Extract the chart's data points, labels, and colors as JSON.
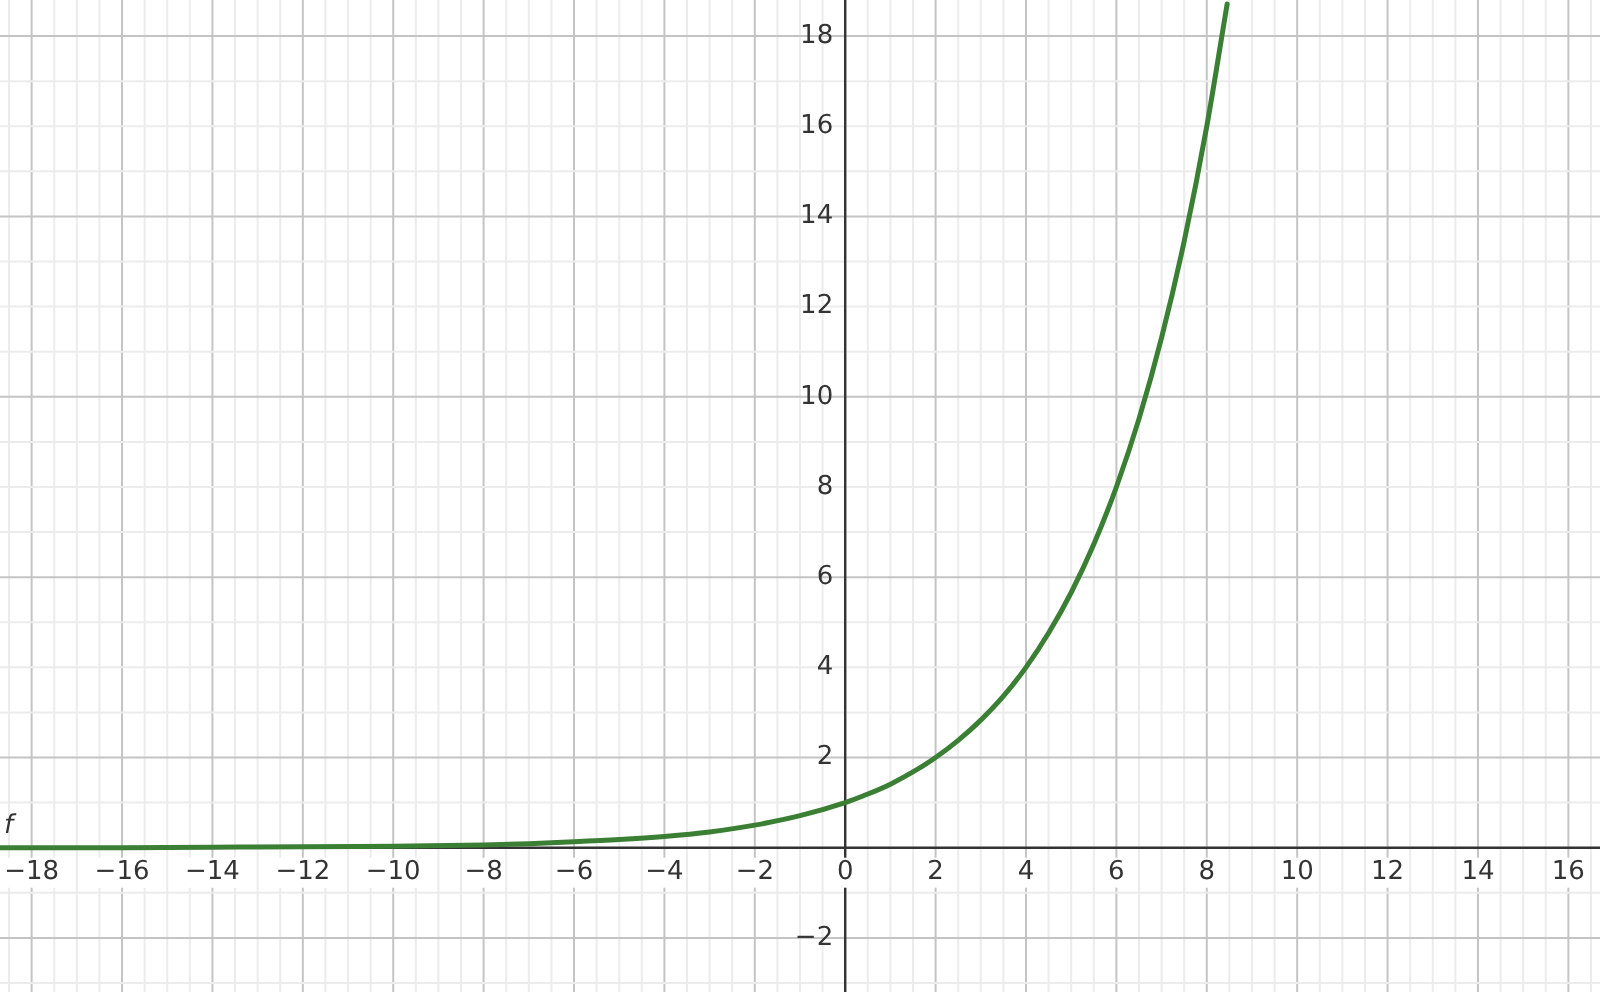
{
  "chart_data": {
    "type": "line",
    "x": [
      -18.7,
      -16,
      -14,
      -12,
      -10,
      -8,
      -7,
      -6,
      -5,
      -4,
      -3,
      -2,
      -1,
      0,
      0.5,
      1,
      1.5,
      2,
      2.5,
      3,
      3.5,
      4,
      4.5,
      5,
      5.5,
      6,
      6.5,
      7,
      7.5,
      8,
      8.45
    ],
    "series": [
      {
        "name": "f",
        "color": "#3b7f35",
        "values": [
          0,
          0,
          0.01,
          0.02,
          0.03,
          0.06,
          0.09,
          0.13,
          0.18,
          0.25,
          0.35,
          0.5,
          0.71,
          1,
          1.19,
          1.41,
          1.68,
          2,
          2.38,
          2.83,
          3.36,
          4,
          4.76,
          5.66,
          6.73,
          8,
          9.51,
          11.31,
          13.45,
          16,
          18.71
        ]
      }
    ],
    "xlim": [
      -18.7,
      16.7
    ],
    "ylim": [
      -3.2,
      18.8
    ],
    "xticks": [
      -18,
      -16,
      -14,
      -12,
      -10,
      -8,
      -6,
      -4,
      -2,
      0,
      2,
      4,
      6,
      8,
      10,
      12,
      14,
      16
    ],
    "yticks": [
      -2,
      2,
      4,
      6,
      8,
      10,
      12,
      14,
      16,
      18
    ],
    "grid": true,
    "legend": false,
    "marker": "none",
    "line_style": "solid"
  }
}
